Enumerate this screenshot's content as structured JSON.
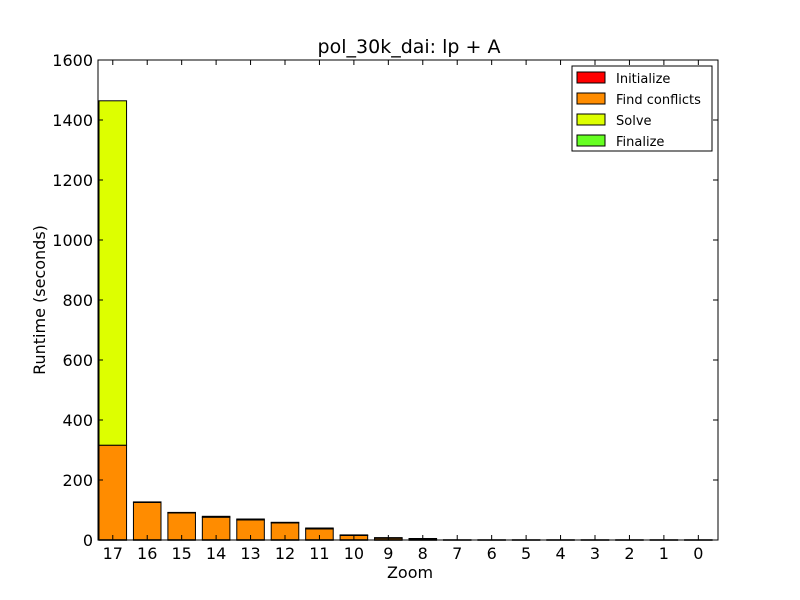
{
  "chart_data": {
    "type": "bar",
    "stacked": true,
    "title": "pol_30k_dai: lp + A",
    "xlabel": "Zoom",
    "ylabel": "Runtime (seconds)",
    "ylim": [
      0,
      1600
    ],
    "yticks": [
      "0",
      "200",
      "400",
      "600",
      "800",
      "1000",
      "1200",
      "1400",
      "1600"
    ],
    "categories": [
      "17",
      "16",
      "15",
      "14",
      "13",
      "12",
      "11",
      "10",
      "9",
      "8",
      "7",
      "6",
      "5",
      "4",
      "3",
      "2",
      "1",
      "0"
    ],
    "grid": false,
    "legend_position": "top-right",
    "series": [
      {
        "name": "Initialize",
        "color": "#ff0000",
        "values": [
          1,
          1,
          1,
          1,
          1,
          1,
          1,
          1,
          1,
          1,
          0,
          0,
          0,
          0,
          0,
          0,
          0,
          0
        ]
      },
      {
        "name": "Find conflicts",
        "color": "#ff8c00",
        "values": [
          315,
          125,
          90,
          75,
          66,
          56,
          36,
          14,
          5,
          3,
          1,
          1,
          1,
          1,
          1,
          1,
          1,
          1
        ]
      },
      {
        "name": "Solve",
        "color": "#ddff00",
        "values": [
          1148,
          1,
          1,
          3,
          3,
          2,
          3,
          2,
          2,
          1,
          0,
          0,
          0,
          0,
          0,
          0,
          0,
          0
        ]
      },
      {
        "name": "Finalize",
        "color": "#66ff22",
        "values": [
          0,
          0,
          0,
          0,
          0,
          0,
          0,
          0,
          0,
          0,
          0,
          0,
          0,
          0,
          0,
          0,
          0,
          0
        ]
      }
    ]
  }
}
